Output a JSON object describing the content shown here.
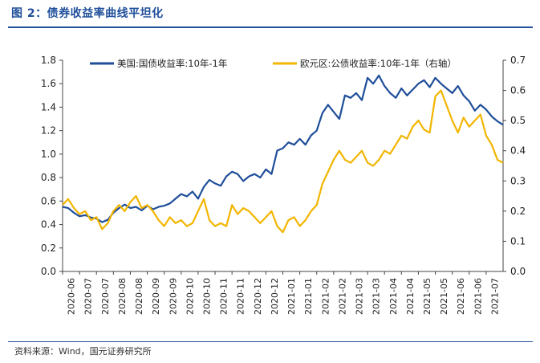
{
  "figure_title": "图 2：债券收益率曲线平坦化",
  "source": "资料来源：Wind，国元证券研究所",
  "chart_data": {
    "type": "line",
    "legend_placement": "top-center",
    "grid": false,
    "y_left": {
      "lim": [
        0,
        1.8
      ],
      "ticks": [
        "0.0",
        "0.2",
        "0.4",
        "0.6",
        "0.8",
        "1.0",
        "1.2",
        "1.4",
        "1.6",
        "1.8"
      ]
    },
    "y_right": {
      "lim": [
        0,
        0.7
      ],
      "ticks": [
        "0.0",
        "0.1",
        "0.2",
        "0.3",
        "0.4",
        "0.5",
        "0.6",
        "0.7"
      ]
    },
    "x_ticks": [
      "2020-06",
      "2020-07",
      "2020-07",
      "2020-08",
      "2020-08",
      "2020-09",
      "2020-09",
      "2020-10",
      "2020-10",
      "2020-11",
      "2020-11",
      "2020-12",
      "2020-12",
      "2021-01",
      "2021-01",
      "2021-02",
      "2021-02",
      "2021-03",
      "2021-03",
      "2021-04",
      "2021-04",
      "2021-05",
      "2021-05",
      "2021-06",
      "2021-06",
      "2021-07"
    ],
    "series": [
      {
        "name": "美国:国债收益率:10年-1年",
        "axis": "left",
        "color": "#1f4e9a",
        "values": [
          0.55,
          0.54,
          0.5,
          0.47,
          0.48,
          0.46,
          0.45,
          0.42,
          0.44,
          0.5,
          0.54,
          0.57,
          0.54,
          0.55,
          0.52,
          0.56,
          0.53,
          0.55,
          0.56,
          0.58,
          0.62,
          0.66,
          0.64,
          0.68,
          0.62,
          0.72,
          0.78,
          0.75,
          0.73,
          0.81,
          0.85,
          0.83,
          0.77,
          0.81,
          0.83,
          0.8,
          0.87,
          0.83,
          1.03,
          1.05,
          1.1,
          1.08,
          1.13,
          1.08,
          1.16,
          1.2,
          1.35,
          1.42,
          1.36,
          1.3,
          1.5,
          1.48,
          1.52,
          1.46,
          1.65,
          1.6,
          1.67,
          1.58,
          1.52,
          1.48,
          1.56,
          1.5,
          1.55,
          1.6,
          1.63,
          1.57,
          1.65,
          1.6,
          1.56,
          1.52,
          1.58,
          1.5,
          1.45,
          1.37,
          1.42,
          1.38,
          1.32,
          1.28,
          1.25
        ]
      },
      {
        "name": "欧元区:公债收益率:10年-1年（右轴）",
        "axis": "right",
        "color": "#f2b500",
        "values": [
          0.22,
          0.24,
          0.21,
          0.19,
          0.2,
          0.17,
          0.18,
          0.14,
          0.16,
          0.2,
          0.22,
          0.2,
          0.23,
          0.25,
          0.21,
          0.22,
          0.2,
          0.17,
          0.15,
          0.18,
          0.16,
          0.17,
          0.15,
          0.16,
          0.2,
          0.24,
          0.17,
          0.15,
          0.16,
          0.15,
          0.22,
          0.19,
          0.21,
          0.2,
          0.18,
          0.16,
          0.18,
          0.2,
          0.15,
          0.13,
          0.17,
          0.18,
          0.15,
          0.17,
          0.2,
          0.22,
          0.29,
          0.33,
          0.37,
          0.4,
          0.37,
          0.36,
          0.38,
          0.4,
          0.36,
          0.35,
          0.37,
          0.4,
          0.39,
          0.42,
          0.45,
          0.44,
          0.48,
          0.5,
          0.47,
          0.46,
          0.58,
          0.6,
          0.55,
          0.5,
          0.46,
          0.51,
          0.48,
          0.5,
          0.52,
          0.45,
          0.42,
          0.37,
          0.36
        ]
      }
    ]
  }
}
